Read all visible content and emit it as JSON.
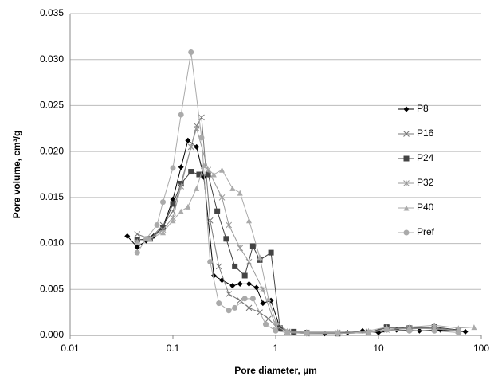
{
  "chart_data": {
    "type": "line",
    "x_label": "Pore diameter, µm",
    "y_label": "Pore volume, cm³/g",
    "xscale": "log",
    "grid": true,
    "legend": "right",
    "xlim": [
      0.01,
      100
    ],
    "xticks": [
      0.01,
      0.1,
      1,
      10,
      100
    ],
    "ylim": [
      0,
      0.035
    ],
    "yticks": [
      {
        "value": 0,
        "label": "0.000"
      },
      {
        "value": 0.005,
        "label": "0.005"
      },
      {
        "value": 0.01,
        "label": "0.010"
      },
      {
        "value": 0.015,
        "label": "0.015"
      },
      {
        "value": 0.02,
        "label": "0.020"
      },
      {
        "value": 0.025,
        "label": "0.025"
      },
      {
        "value": 0.03,
        "label": "0.030"
      },
      {
        "value": 0.035,
        "label": "0.035"
      }
    ],
    "series": [
      {
        "name": "P8",
        "color": "#000000",
        "marker": "diamond",
        "x": [
          0.036,
          0.045,
          0.055,
          0.065,
          0.08,
          0.1,
          0.12,
          0.14,
          0.17,
          0.2,
          0.25,
          0.3,
          0.38,
          0.45,
          0.55,
          0.65,
          0.75,
          0.9,
          1.1,
          1.5,
          2,
          3,
          5,
          7,
          10,
          15,
          25,
          40,
          70
        ],
        "values": [
          0.0108,
          0.0096,
          0.0103,
          0.0108,
          0.0118,
          0.0148,
          0.0183,
          0.0212,
          0.0205,
          0.0172,
          0.0065,
          0.006,
          0.0054,
          0.0056,
          0.0056,
          0.0052,
          0.0035,
          0.0038,
          0.0008,
          0.0003,
          0.0002,
          0.0002,
          0.0003,
          0.0005,
          0.0003,
          0.0006,
          0.0005,
          0.0006,
          0.0004
        ]
      },
      {
        "name": "P16",
        "color": "#777777",
        "marker": "x",
        "x": [
          0.045,
          0.06,
          0.08,
          0.1,
          0.12,
          0.15,
          0.17,
          0.19,
          0.23,
          0.28,
          0.35,
          0.45,
          0.55,
          0.7,
          0.85,
          1,
          1.3,
          2,
          4,
          8,
          12,
          20,
          35,
          60
        ],
        "values": [
          0.011,
          0.0105,
          0.012,
          0.0135,
          0.0165,
          0.0205,
          0.0228,
          0.0237,
          0.0125,
          0.0075,
          0.0045,
          0.0038,
          0.003,
          0.0025,
          0.0018,
          0.001,
          0.0004,
          0.0002,
          0.0002,
          0.0003,
          0.0008,
          0.0007,
          0.0008,
          0.0005
        ]
      },
      {
        "name": "P24",
        "color": "#444444",
        "marker": "square",
        "x": [
          0.045,
          0.06,
          0.08,
          0.1,
          0.12,
          0.15,
          0.18,
          0.22,
          0.27,
          0.33,
          0.4,
          0.5,
          0.6,
          0.7,
          0.9,
          1.1,
          1.5,
          2,
          4,
          8,
          12,
          20,
          35,
          60
        ],
        "values": [
          0.0104,
          0.0105,
          0.0117,
          0.0143,
          0.0165,
          0.0178,
          0.0175,
          0.0175,
          0.0135,
          0.0105,
          0.0075,
          0.0065,
          0.0097,
          0.0082,
          0.009,
          0.0008,
          0.0004,
          0.0003,
          0.0002,
          0.0003,
          0.0009,
          0.0008,
          0.0009,
          0.0006
        ]
      },
      {
        "name": "P32",
        "color": "#999999",
        "marker": "star",
        "x": [
          0.045,
          0.06,
          0.08,
          0.1,
          0.12,
          0.15,
          0.17,
          0.22,
          0.3,
          0.35,
          0.45,
          0.55,
          0.75,
          1,
          1.3,
          2,
          4,
          8,
          12,
          20,
          35,
          60
        ],
        "values": [
          0.0102,
          0.0105,
          0.0115,
          0.0128,
          0.0162,
          0.0205,
          0.0225,
          0.018,
          0.015,
          0.012,
          0.0095,
          0.008,
          0.005,
          0.001,
          0.0004,
          0.0003,
          0.0003,
          0.0004,
          0.0006,
          0.0008,
          0.0007,
          0.0005
        ]
      },
      {
        "name": "P40",
        "color": "#aaaaaa",
        "marker": "triangle",
        "x": [
          0.045,
          0.06,
          0.08,
          0.1,
          0.12,
          0.14,
          0.17,
          0.2,
          0.25,
          0.3,
          0.38,
          0.45,
          0.55,
          0.7,
          0.85,
          1,
          1.3,
          2,
          4,
          8,
          12,
          20,
          35,
          60,
          85
        ],
        "values": [
          0.0102,
          0.0105,
          0.0112,
          0.0125,
          0.0135,
          0.014,
          0.016,
          0.0185,
          0.0175,
          0.018,
          0.016,
          0.0155,
          0.0125,
          0.0085,
          0.004,
          0.0015,
          0.0005,
          0.0004,
          0.0004,
          0.0005,
          0.0009,
          0.0009,
          0.0011,
          0.0008,
          0.0009
        ]
      },
      {
        "name": "Pref",
        "color": "#aaaaaa",
        "marker": "circle",
        "x": [
          0.045,
          0.055,
          0.07,
          0.08,
          0.1,
          0.12,
          0.15,
          0.19,
          0.23,
          0.28,
          0.35,
          0.4,
          0.5,
          0.6,
          0.8,
          1,
          1.3,
          2,
          4,
          8,
          12,
          20,
          35,
          60
        ],
        "values": [
          0.009,
          0.0105,
          0.012,
          0.0145,
          0.0182,
          0.024,
          0.0308,
          0.0215,
          0.008,
          0.0035,
          0.0027,
          0.003,
          0.004,
          0.004,
          0.0012,
          0.0005,
          0.0003,
          0.0002,
          0.0002,
          0.0003,
          0.0006,
          0.0005,
          0.0005,
          0.0003
        ]
      }
    ]
  }
}
